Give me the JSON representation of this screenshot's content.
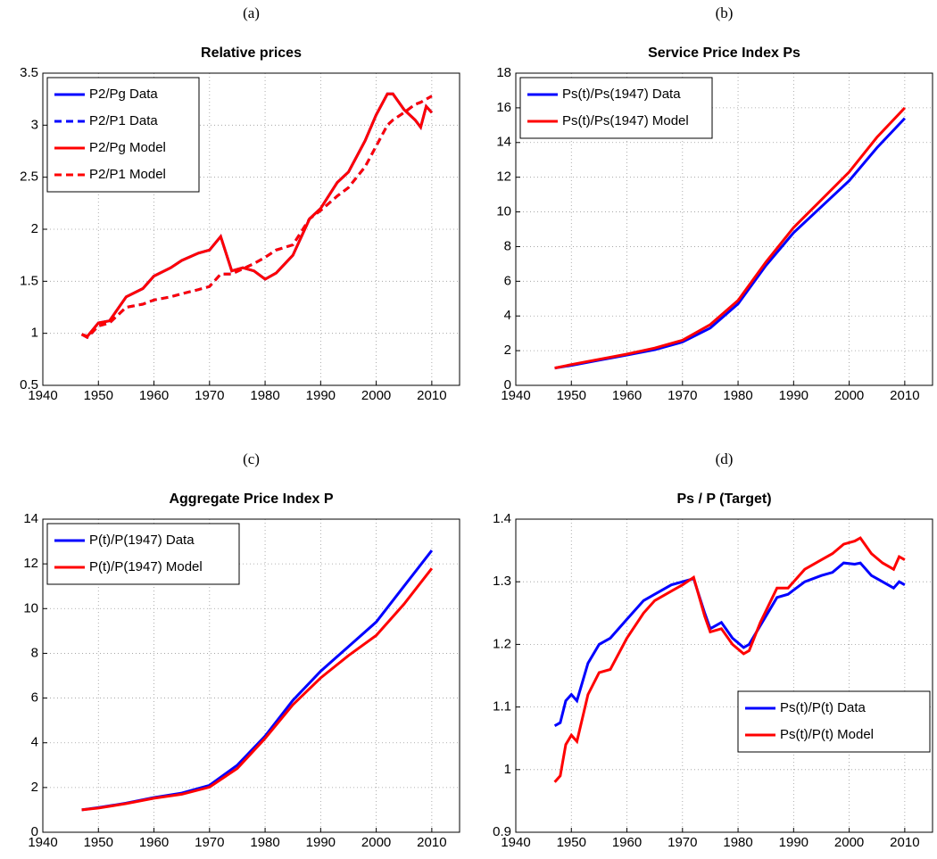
{
  "chart_data": [
    {
      "type": "line",
      "label": "(a)",
      "title": "Relative prices",
      "x": [
        1947,
        1948,
        1950,
        1952,
        1955,
        1958,
        1960,
        1963,
        1965,
        1968,
        1970,
        1972,
        1974,
        1976,
        1978,
        1980,
        1982,
        1985,
        1988,
        1990,
        1993,
        1995,
        1998,
        2000,
        2002,
        2003,
        2005,
        2007,
        2008,
        2009,
        2010
      ],
      "series": [
        {
          "name": "P2/Pg Data",
          "color": "#0000ff",
          "dash": false,
          "values": [
            0.99,
            0.97,
            1.1,
            1.12,
            1.35,
            1.43,
            1.55,
            1.63,
            1.7,
            1.77,
            1.8,
            1.93,
            1.6,
            1.63,
            1.6,
            1.52,
            1.58,
            1.75,
            2.1,
            2.2,
            2.45,
            2.55,
            2.85,
            3.1,
            3.3,
            3.3,
            3.15,
            3.05,
            2.98,
            3.18,
            3.12
          ]
        },
        {
          "name": "P2/P1 Data",
          "color": "#0000ff",
          "dash": true,
          "values": [
            0.99,
            0.96,
            1.07,
            1.1,
            1.25,
            1.28,
            1.32,
            1.35,
            1.38,
            1.42,
            1.45,
            1.57,
            1.57,
            1.62,
            1.67,
            1.73,
            1.8,
            1.85,
            2.1,
            2.18,
            2.32,
            2.4,
            2.6,
            2.8,
            3.0,
            3.05,
            3.12,
            3.2,
            3.22,
            3.25,
            3.28
          ]
        },
        {
          "name": "P2/Pg Model",
          "color": "#ff0000",
          "dash": false,
          "values": [
            0.99,
            0.97,
            1.1,
            1.12,
            1.35,
            1.43,
            1.55,
            1.63,
            1.7,
            1.77,
            1.8,
            1.93,
            1.6,
            1.63,
            1.6,
            1.52,
            1.58,
            1.75,
            2.1,
            2.2,
            2.45,
            2.55,
            2.85,
            3.1,
            3.3,
            3.3,
            3.15,
            3.05,
            2.98,
            3.18,
            3.12
          ]
        },
        {
          "name": "P2/P1 Model",
          "color": "#ff0000",
          "dash": true,
          "values": [
            0.99,
            0.96,
            1.07,
            1.1,
            1.25,
            1.28,
            1.32,
            1.35,
            1.38,
            1.42,
            1.45,
            1.57,
            1.57,
            1.62,
            1.67,
            1.73,
            1.8,
            1.85,
            2.1,
            2.18,
            2.32,
            2.4,
            2.6,
            2.8,
            3.0,
            3.05,
            3.12,
            3.2,
            3.22,
            3.25,
            3.28
          ]
        }
      ],
      "xlim": [
        1940,
        2015
      ],
      "xticks": [
        1940,
        1950,
        1960,
        1970,
        1980,
        1990,
        2000,
        2010
      ],
      "ylim": [
        0.5,
        3.5
      ],
      "yticks": [
        0.5,
        1,
        1.5,
        2,
        2.5,
        3,
        3.5
      ],
      "grid": true,
      "legend": "upper left"
    },
    {
      "type": "line",
      "label": "(b)",
      "title": "Service Price Index Ps",
      "x": [
        1947,
        1950,
        1955,
        1960,
        1965,
        1970,
        1975,
        1980,
        1985,
        1990,
        1995,
        2000,
        2005,
        2010
      ],
      "series": [
        {
          "name": "Ps(t)/Ps(1947) Data",
          "color": "#0000ff",
          "dash": false,
          "values": [
            1,
            1.15,
            1.45,
            1.75,
            2.05,
            2.5,
            3.3,
            4.7,
            6.9,
            8.8,
            10.3,
            11.8,
            13.7,
            15.4
          ]
        },
        {
          "name": "Ps(t)/Ps(1947) Model",
          "color": "#ff0000",
          "dash": false,
          "values": [
            1,
            1.2,
            1.5,
            1.8,
            2.15,
            2.6,
            3.5,
            4.9,
            7.1,
            9.1,
            10.7,
            12.3,
            14.3,
            16.0
          ]
        }
      ],
      "xlim": [
        1940,
        2015
      ],
      "xticks": [
        1940,
        1950,
        1960,
        1970,
        1980,
        1990,
        2000,
        2010
      ],
      "ylim": [
        0,
        18
      ],
      "yticks": [
        0,
        2,
        4,
        6,
        8,
        10,
        12,
        14,
        16,
        18
      ],
      "grid": true,
      "legend": "upper left"
    },
    {
      "type": "line",
      "label": "(c)",
      "title": "Aggregate Price Index P",
      "x": [
        1947,
        1950,
        1955,
        1960,
        1965,
        1970,
        1975,
        1980,
        1985,
        1990,
        1995,
        2000,
        2005,
        2010
      ],
      "series": [
        {
          "name": "P(t)/P(1947) Data",
          "color": "#0000ff",
          "dash": false,
          "values": [
            1,
            1.1,
            1.3,
            1.55,
            1.75,
            2.1,
            3.0,
            4.3,
            5.9,
            7.2,
            8.3,
            9.4,
            11.0,
            12.6
          ]
        },
        {
          "name": "P(t)/P(1947) Model",
          "color": "#ff0000",
          "dash": false,
          "values": [
            1,
            1.08,
            1.28,
            1.52,
            1.7,
            2.02,
            2.85,
            4.2,
            5.7,
            6.9,
            7.9,
            8.8,
            10.2,
            11.8
          ]
        }
      ],
      "xlim": [
        1940,
        2015
      ],
      "xticks": [
        1940,
        1950,
        1960,
        1970,
        1980,
        1990,
        2000,
        2010
      ],
      "ylim": [
        0,
        14
      ],
      "yticks": [
        0,
        2,
        4,
        6,
        8,
        10,
        12,
        14
      ],
      "grid": true,
      "legend": "upper left"
    },
    {
      "type": "line",
      "label": "(d)",
      "title": "Ps / P (Target)",
      "x": [
        1947,
        1948,
        1949,
        1950,
        1951,
        1953,
        1955,
        1957,
        1960,
        1963,
        1965,
        1968,
        1970,
        1972,
        1974,
        1975,
        1977,
        1979,
        1981,
        1982,
        1984,
        1987,
        1989,
        1992,
        1995,
        1997,
        1999,
        2001,
        2002,
        2004,
        2006,
        2008,
        2009,
        2010
      ],
      "series": [
        {
          "name": "Ps(t)/P(t) Data",
          "color": "#0000ff",
          "dash": false,
          "values": [
            1.07,
            1.075,
            1.11,
            1.12,
            1.11,
            1.17,
            1.2,
            1.21,
            1.24,
            1.27,
            1.28,
            1.295,
            1.3,
            1.305,
            1.25,
            1.225,
            1.235,
            1.21,
            1.195,
            1.2,
            1.23,
            1.275,
            1.28,
            1.3,
            1.31,
            1.315,
            1.33,
            1.328,
            1.33,
            1.31,
            1.3,
            1.29,
            1.3,
            1.295
          ]
        },
        {
          "name": "Ps(t)/P(t) Model",
          "color": "#ff0000",
          "dash": false,
          "values": [
            0.98,
            0.99,
            1.04,
            1.055,
            1.045,
            1.12,
            1.155,
            1.16,
            1.21,
            1.25,
            1.27,
            1.285,
            1.295,
            1.307,
            1.245,
            1.22,
            1.225,
            1.2,
            1.185,
            1.19,
            1.235,
            1.29,
            1.29,
            1.32,
            1.335,
            1.345,
            1.36,
            1.365,
            1.37,
            1.345,
            1.33,
            1.32,
            1.34,
            1.335
          ]
        }
      ],
      "xlim": [
        1940,
        2015
      ],
      "xticks": [
        1940,
        1950,
        1960,
        1970,
        1980,
        1990,
        2000,
        2010
      ],
      "ylim": [
        0.9,
        1.4
      ],
      "yticks": [
        0.9,
        1,
        1.1,
        1.2,
        1.3,
        1.4
      ],
      "grid": true,
      "legend": "lower right"
    }
  ]
}
